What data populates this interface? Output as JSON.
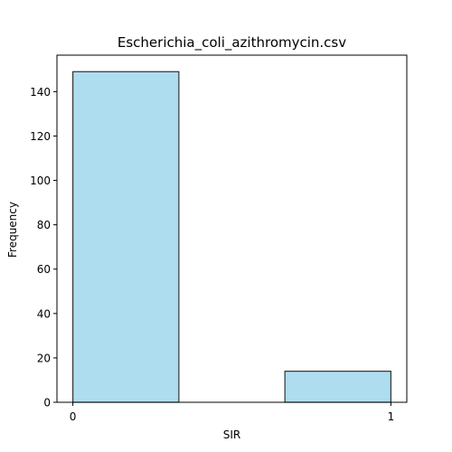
{
  "chart_data": {
    "type": "bar",
    "title": "Escherichia_coli_azithromycin.csv",
    "xlabel": "SIR",
    "ylabel": "Frequency",
    "bins": [
      {
        "x0": 0.0,
        "x1": 0.3333,
        "count": 149
      },
      {
        "x0": 0.6667,
        "x1": 1.0,
        "count": 14
      }
    ],
    "xticks": [
      0,
      1
    ],
    "yticks": [
      0,
      20,
      40,
      60,
      80,
      100,
      120,
      140
    ],
    "xlim": [
      -0.05,
      1.05
    ],
    "ylim": [
      0,
      156.45
    ],
    "bar_color": "#ADDDEF",
    "edge_color": "#333333",
    "grid": false,
    "legend": "none"
  }
}
